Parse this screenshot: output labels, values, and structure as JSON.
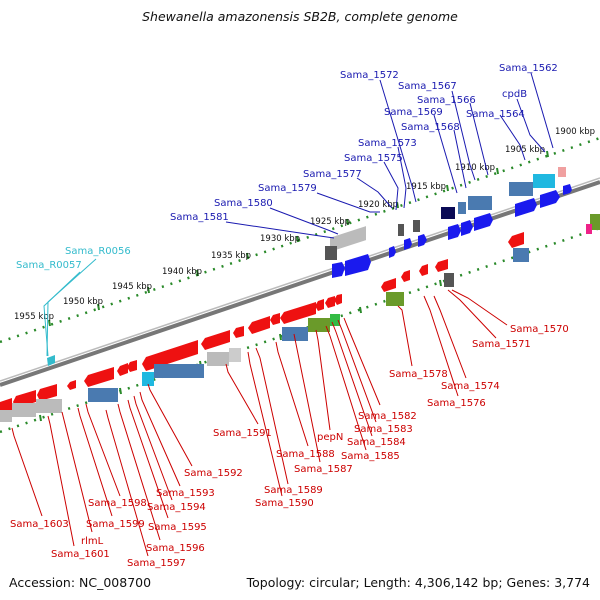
{
  "title": "Shewanella amazonensis SB2B, complete genome",
  "accession": "Accession: NC_008700",
  "summary": "Topology: circular; Length: 4,306,142 bp; Genes: 3,774",
  "colors": {
    "forward_cds": "#1a1aee",
    "reverse_cds": "#ee1111",
    "backbone": "#888888",
    "tick": "#2a8a2a",
    "label_forward": "#1a1ab0",
    "label_reverse": "#cc0000",
    "label_rna": "#33bbcc"
  },
  "kbp_ticks": [
    "1900 kbp",
    "1905 kbp",
    "1910 kbp",
    "1915 kbp",
    "1920 kbp",
    "1925 kbp",
    "1930 kbp",
    "1935 kbp",
    "1940 kbp",
    "1945 kbp",
    "1950 kbp",
    "1955 kbp"
  ],
  "top_labels": [
    "Sama_1562",
    "cpdB",
    "Sama_1564",
    "Sama_1566",
    "Sama_1567",
    "Sama_1568",
    "Sama_1569",
    "Sama_1572",
    "Sama_1573",
    "Sama_1575",
    "Sama_1577",
    "Sama_1579",
    "Sama_1580",
    "Sama_1581"
  ],
  "rna_labels": [
    "Sama_R0056",
    "Sama_R0057"
  ],
  "bottom_labels": [
    "Sama_1570",
    "Sama_1571",
    "Sama_1574",
    "Sama_1576",
    "Sama_1578",
    "Sama_1582",
    "Sama_1583",
    "Sama_1584",
    "Sama_1585",
    "pepN",
    "Sama_1587",
    "Sama_1588",
    "Sama_1589",
    "Sama_1590",
    "Sama_1591",
    "Sama_1592",
    "Sama_1593",
    "Sama_1594",
    "Sama_1595",
    "Sama_1596",
    "Sama_1597",
    "Sama_1598",
    "Sama_1599",
    "rlmL",
    "Sama_1601",
    "Sama_1603"
  ]
}
